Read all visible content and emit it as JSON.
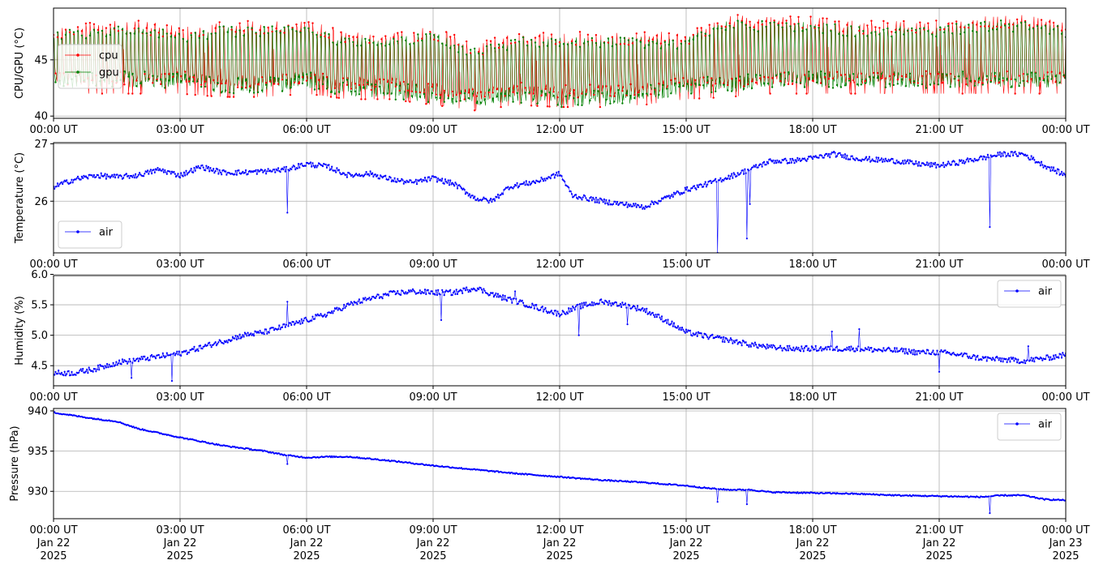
{
  "chart_data": [
    {
      "type": "line",
      "ylabel": "CPU/GPU (°C)",
      "ylim": [
        39.8,
        49.6
      ],
      "yticks": [
        40,
        45
      ],
      "grid": true,
      "legend_position": "upper-left",
      "x_ticks": [
        "00:00 UT",
        "03:00 UT",
        "06:00 UT",
        "09:00 UT",
        "12:00 UT",
        "15:00 UT",
        "18:00 UT",
        "21:00 UT",
        "00:00 UT"
      ],
      "series": [
        {
          "name": "cpu",
          "color": "#ff0000",
          "x_hours": [
            0,
            1,
            2,
            3,
            4,
            5,
            6,
            7,
            8,
            9,
            10,
            11,
            12,
            13,
            14,
            15,
            16,
            17,
            18,
            19,
            20,
            21,
            22,
            23,
            24
          ],
          "low": [
            42.0,
            42.0,
            42.0,
            42.0,
            41.7,
            41.7,
            42.0,
            41.5,
            41.5,
            41.0,
            40.5,
            41.0,
            40.8,
            40.8,
            41.0,
            41.5,
            41.7,
            42.0,
            42.0,
            42.0,
            42.0,
            42.0,
            42.0,
            42.0,
            42.0
          ],
          "high": [
            48.0,
            48.5,
            48.5,
            48.0,
            48.5,
            48.5,
            48.5,
            47.5,
            47.5,
            48.0,
            46.5,
            47.5,
            47.5,
            47.5,
            47.5,
            47.5,
            49.0,
            49.0,
            49.0,
            48.5,
            48.5,
            48.5,
            49.0,
            49.0,
            48.5
          ]
        },
        {
          "name": "gpu",
          "color": "#008000",
          "x_hours": [
            0,
            1,
            2,
            3,
            4,
            5,
            6,
            7,
            8,
            9,
            10,
            11,
            12,
            13,
            14,
            15,
            16,
            17,
            18,
            19,
            20,
            21,
            22,
            23,
            24
          ],
          "low": [
            42.5,
            42.5,
            42.5,
            42.5,
            42.0,
            42.0,
            42.5,
            41.7,
            41.5,
            41.2,
            40.8,
            41.2,
            40.8,
            40.8,
            41.2,
            42.0,
            42.0,
            42.5,
            42.5,
            42.5,
            42.5,
            42.5,
            42.5,
            42.5,
            42.5
          ]
        }
      ]
    },
    {
      "type": "line",
      "ylabel": "Temperature (°C)",
      "ylim": [
        25.1,
        27.02
      ],
      "yticks": [
        26,
        27
      ],
      "grid": true,
      "legend_position": "lower-left",
      "x_ticks": [
        "00:00 UT",
        "03:00 UT",
        "06:00 UT",
        "09:00 UT",
        "12:00 UT",
        "15:00 UT",
        "18:00 UT",
        "21:00 UT",
        "00:00 UT"
      ],
      "series": [
        {
          "name": "air",
          "color": "#0000ff",
          "x_hours": [
            0,
            0.5,
            1,
            1.5,
            2,
            2.5,
            3,
            3.5,
            4,
            4.5,
            5,
            5.5,
            6,
            6.5,
            7,
            7.5,
            8,
            8.5,
            9,
            9.5,
            10,
            10.4,
            10.8,
            11.5,
            12,
            12.3,
            13,
            13.5,
            14,
            14.5,
            15,
            15.5,
            16,
            16.5,
            17,
            17.5,
            18,
            18.5,
            19,
            19.5,
            20,
            20.5,
            21,
            21.5,
            22,
            22.5,
            23,
            23.5,
            24
          ],
          "values": [
            26.25,
            26.38,
            26.45,
            26.42,
            26.45,
            26.55,
            26.45,
            26.6,
            26.5,
            26.5,
            26.52,
            26.55,
            26.65,
            26.6,
            26.45,
            26.48,
            26.38,
            26.32,
            26.4,
            26.3,
            26.05,
            26.0,
            26.25,
            26.35,
            26.48,
            26.1,
            26.0,
            25.95,
            25.9,
            26.05,
            26.2,
            26.3,
            26.42,
            26.55,
            26.7,
            26.7,
            26.75,
            26.82,
            26.75,
            26.72,
            26.7,
            26.65,
            26.62,
            26.68,
            26.75,
            26.82,
            26.82,
            26.62,
            26.45
          ],
          "spikes": [
            {
              "hour": 5.55,
              "value": 25.8
            },
            {
              "hour": 15.75,
              "value": 25.1
            },
            {
              "hour": 16.45,
              "value": 25.35
            },
            {
              "hour": 16.5,
              "value": 25.95
            },
            {
              "hour": 22.2,
              "value": 25.55
            }
          ]
        }
      ]
    },
    {
      "type": "line",
      "ylabel": "Humidity (%)",
      "ylim": [
        4.17,
        5.98
      ],
      "yticks": [
        4.5,
        5.0,
        5.5,
        6.0
      ],
      "grid": true,
      "legend_position": "upper-right",
      "x_ticks": [
        "00:00 UT",
        "03:00 UT",
        "06:00 UT",
        "09:00 UT",
        "12:00 UT",
        "15:00 UT",
        "18:00 UT",
        "21:00 UT",
        "00:00 UT"
      ],
      "series": [
        {
          "name": "air",
          "color": "#0000ff",
          "x_hours": [
            0,
            0.5,
            1,
            1.5,
            2,
            2.5,
            3,
            3.5,
            4,
            4.5,
            5,
            5.5,
            6,
            6.5,
            7,
            7.5,
            8,
            8.5,
            9,
            9.5,
            10,
            10.5,
            11,
            11.5,
            12,
            12.5,
            13,
            13.5,
            14,
            14.5,
            15,
            15.5,
            16,
            16.5,
            17,
            17.5,
            18,
            18.5,
            19,
            19.5,
            20,
            20.5,
            21,
            21.5,
            22,
            22.5,
            23,
            23.5,
            24
          ],
          "values": [
            4.38,
            4.38,
            4.45,
            4.55,
            4.6,
            4.65,
            4.7,
            4.8,
            4.9,
            5.0,
            5.05,
            5.15,
            5.25,
            5.35,
            5.5,
            5.6,
            5.68,
            5.72,
            5.7,
            5.7,
            5.78,
            5.65,
            5.55,
            5.45,
            5.35,
            5.48,
            5.55,
            5.5,
            5.42,
            5.25,
            5.05,
            4.98,
            4.92,
            4.85,
            4.8,
            4.78,
            4.78,
            4.78,
            4.78,
            4.76,
            4.75,
            4.72,
            4.72,
            4.68,
            4.62,
            4.6,
            4.58,
            4.62,
            4.68
          ],
          "spikes": [
            {
              "hour": 1.85,
              "value": 4.3
            },
            {
              "hour": 2.8,
              "value": 4.25
            },
            {
              "hour": 5.55,
              "value": 5.55
            },
            {
              "hour": 9.2,
              "value": 5.25
            },
            {
              "hour": 10.95,
              "value": 5.72
            },
            {
              "hour": 12.45,
              "value": 5.0
            },
            {
              "hour": 13.6,
              "value": 5.18
            },
            {
              "hour": 18.45,
              "value": 5.06
            },
            {
              "hour": 19.1,
              "value": 5.1
            },
            {
              "hour": 21.0,
              "value": 4.4
            },
            {
              "hour": 23.1,
              "value": 4.82
            }
          ]
        }
      ]
    },
    {
      "type": "line",
      "ylabel": "Pressure (hPa)",
      "ylim": [
        926.6,
        940.3
      ],
      "yticks": [
        930,
        935,
        940
      ],
      "grid": true,
      "legend_position": "upper-right",
      "x_ticks": [
        "00:00 UT\nJan 22\n2025",
        "03:00 UT\nJan 22\n2025",
        "06:00 UT\nJan 22\n2025",
        "09:00 UT\nJan 22\n2025",
        "12:00 UT\nJan 22\n2025",
        "15:00 UT\nJan 22\n2025",
        "18:00 UT\nJan 22\n2025",
        "21:00 UT\nJan 22\n2025",
        "00:00 UT\nJan 23\n2025"
      ],
      "series": [
        {
          "name": "air",
          "color": "#0000ff",
          "x_hours": [
            0,
            1,
            1.5,
            2,
            3,
            4,
            5,
            5.5,
            6,
            6.5,
            7,
            8,
            9,
            10,
            11,
            12,
            13,
            14,
            15,
            15.5,
            16,
            16.5,
            17,
            18,
            19,
            20,
            21,
            22,
            22.5,
            23,
            23.5,
            24
          ],
          "values": [
            939.8,
            939.0,
            938.7,
            937.8,
            936.7,
            935.7,
            935.0,
            934.5,
            934.2,
            934.3,
            934.3,
            933.8,
            933.2,
            932.7,
            932.2,
            931.8,
            931.4,
            931.1,
            930.7,
            930.4,
            930.2,
            930.2,
            929.9,
            929.8,
            929.7,
            929.5,
            929.4,
            929.3,
            929.5,
            929.5,
            929.0,
            928.9
          ],
          "spikes": [
            {
              "hour": 5.55,
              "value": 933.4
            },
            {
              "hour": 15.75,
              "value": 928.7
            },
            {
              "hour": 16.45,
              "value": 928.4
            },
            {
              "hour": 22.2,
              "value": 927.3
            }
          ]
        }
      ]
    }
  ]
}
